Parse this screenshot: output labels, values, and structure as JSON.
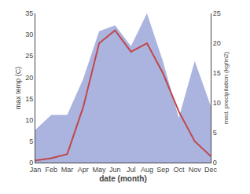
{
  "chart_data": {
    "type": "line",
    "xlabel": "date (month)",
    "ylabel": "max temp (C)",
    "y2label": "med. precipitation (kg/m2)",
    "categories": [
      "Jan",
      "Feb",
      "Mar",
      "Apr",
      "May",
      "Jun",
      "Jul",
      "Aug",
      "Sep",
      "Oct",
      "Nov",
      "Dec"
    ],
    "series": [
      {
        "type": "area",
        "axis": "y2",
        "color": "#aab4df",
        "values": [
          5.5,
          8.0,
          8.0,
          14.0,
          22.0,
          23.0,
          19.5,
          25.0,
          17.0,
          7.5,
          17.0,
          9.5
        ]
      },
      {
        "type": "line",
        "color": "#c0474a",
        "values": [
          0.5,
          1.0,
          2.0,
          13.0,
          28.0,
          31.0,
          26.0,
          28.0,
          21.0,
          12.0,
          5.0,
          1.5
        ]
      }
    ],
    "ylim": [
      0,
      35
    ],
    "yticks": [
      0,
      5,
      10,
      15,
      20,
      25,
      30,
      35
    ],
    "y2lim": [
      0,
      25
    ],
    "y2ticks": [
      0,
      5,
      10,
      15,
      20,
      25
    ],
    "grid": false
  }
}
